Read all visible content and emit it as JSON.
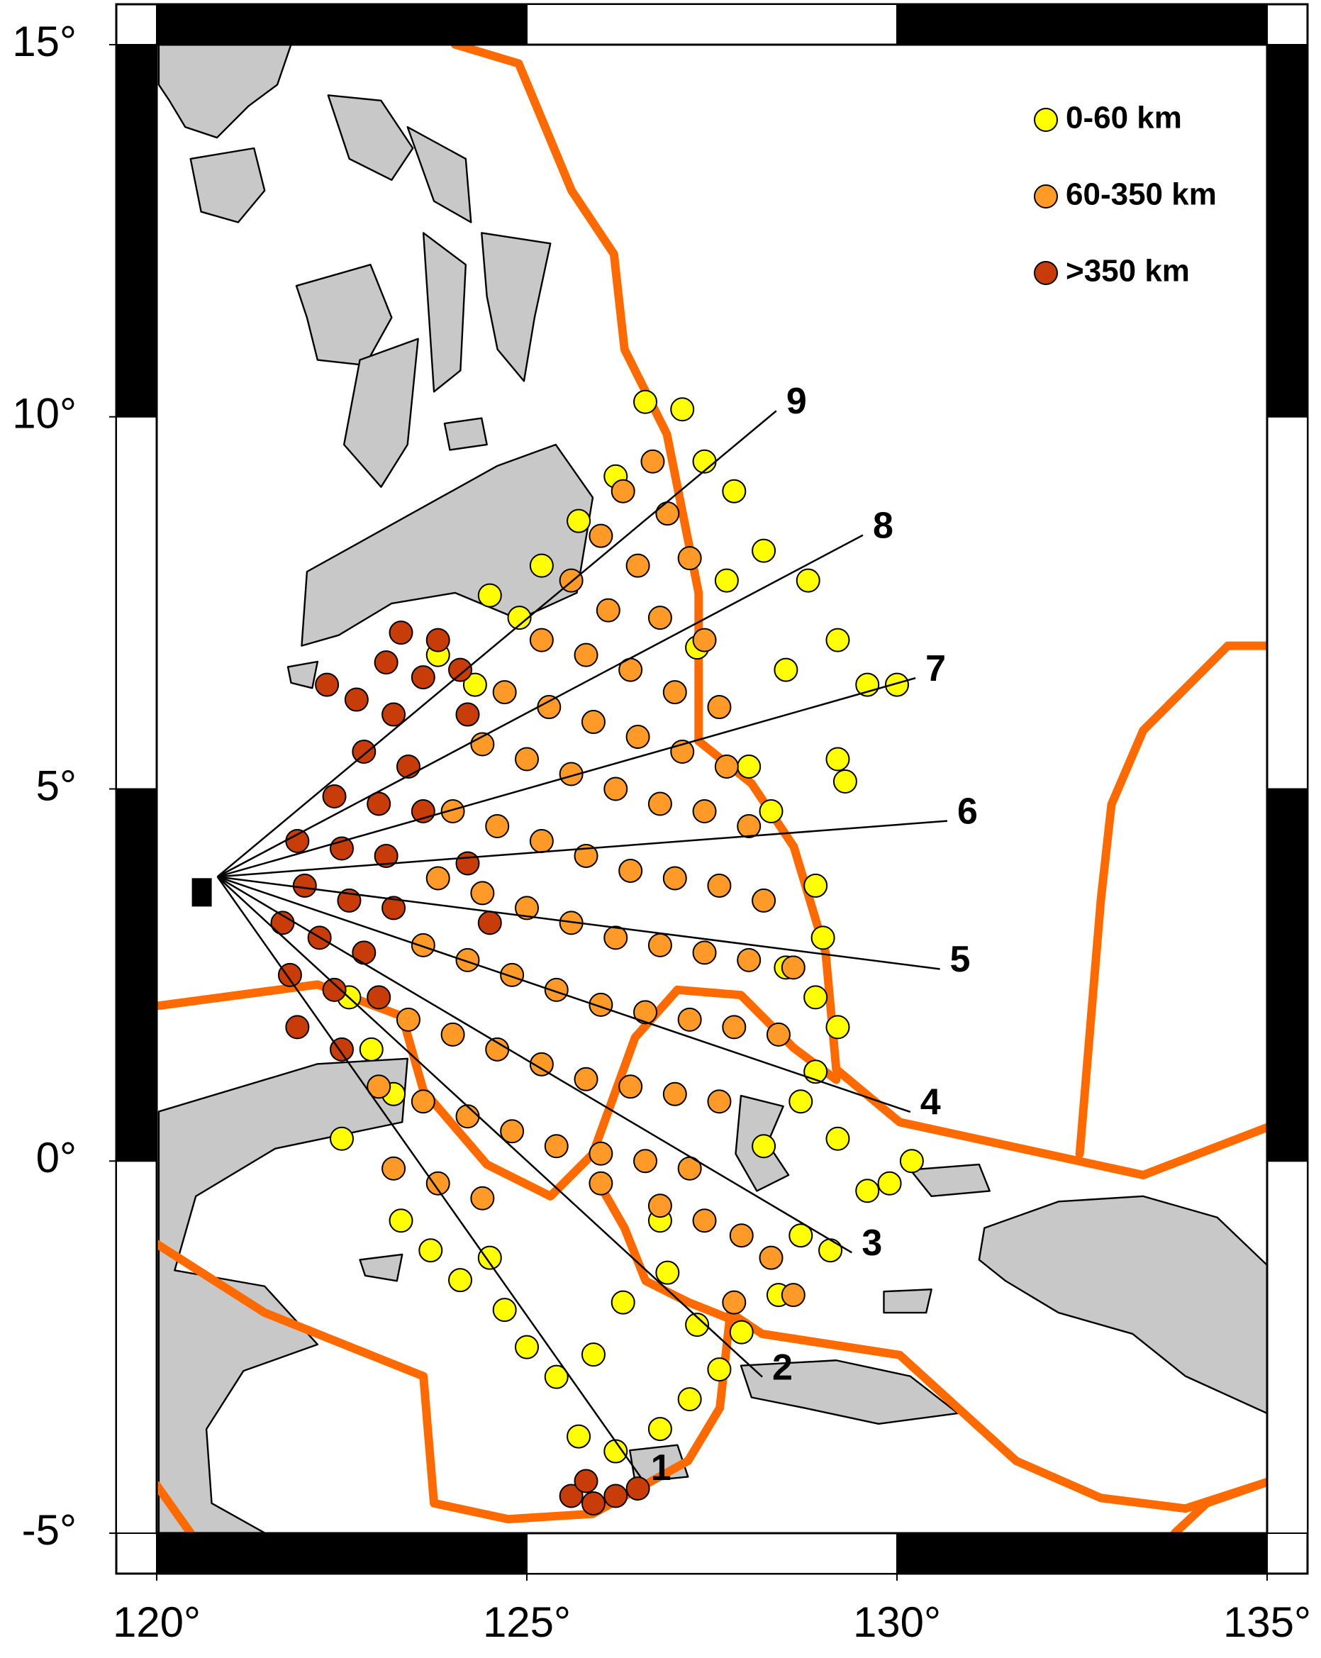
{
  "map": {
    "xlim": [
      120,
      135
    ],
    "ylim": [
      -5,
      15
    ],
    "xticks": [
      {
        "value": 120,
        "label": "120°"
      },
      {
        "value": 125,
        "label": "125°"
      },
      {
        "value": 130,
        "label": "130°"
      },
      {
        "value": 135,
        "label": "135°"
      }
    ],
    "yticks": [
      {
        "value": 15,
        "label": "15°"
      },
      {
        "value": 10,
        "label": "10°"
      },
      {
        "value": 5,
        "label": "5°"
      },
      {
        "value": 0,
        "label": "0°"
      },
      {
        "value": -5,
        "label": "-5°"
      }
    ],
    "earthquakes": [
      {
        "name": "0-60 km",
        "color": "#ffff00",
        "points": [
          [
            126.6,
            10.2
          ],
          [
            127.1,
            10.1
          ],
          [
            127.4,
            9.4
          ],
          [
            127.8,
            9.0
          ],
          [
            128.2,
            8.2
          ],
          [
            128.8,
            7.8
          ],
          [
            129.2,
            7.0
          ],
          [
            128.5,
            6.6
          ],
          [
            129.6,
            6.4
          ],
          [
            130.0,
            6.4
          ],
          [
            129.2,
            5.4
          ],
          [
            129.3,
            5.1
          ],
          [
            128.3,
            4.7
          ],
          [
            128.9,
            3.7
          ],
          [
            129.0,
            3.0
          ],
          [
            128.9,
            2.2
          ],
          [
            128.9,
            1.2
          ],
          [
            129.2,
            1.8
          ],
          [
            128.7,
            0.8
          ],
          [
            129.2,
            0.3
          ],
          [
            130.2,
            0.0
          ],
          [
            129.9,
            -0.3
          ],
          [
            129.6,
            -0.4
          ],
          [
            128.7,
            -1.0
          ],
          [
            129.1,
            -1.2
          ],
          [
            128.4,
            -1.8
          ],
          [
            127.9,
            -2.3
          ],
          [
            127.6,
            -2.8
          ],
          [
            127.2,
            -3.2
          ],
          [
            126.8,
            -3.6
          ],
          [
            126.2,
            -3.9
          ],
          [
            125.7,
            -3.7
          ],
          [
            125.4,
            -2.9
          ],
          [
            125.0,
            -2.5
          ],
          [
            124.7,
            -2.0
          ],
          [
            124.1,
            -1.6
          ],
          [
            123.7,
            -1.2
          ],
          [
            123.3,
            -0.8
          ],
          [
            126.3,
            -1.9
          ],
          [
            126.9,
            -1.5
          ],
          [
            127.3,
            -2.2
          ],
          [
            125.9,
            -2.6
          ],
          [
            122.6,
            2.2
          ],
          [
            122.9,
            1.5
          ],
          [
            123.2,
            0.9
          ],
          [
            124.5,
            7.6
          ],
          [
            125.2,
            8.0
          ],
          [
            125.7,
            8.6
          ],
          [
            126.2,
            9.2
          ],
          [
            124.9,
            7.3
          ],
          [
            123.8,
            6.8
          ],
          [
            124.3,
            6.4
          ],
          [
            127.7,
            7.8
          ],
          [
            127.3,
            6.9
          ],
          [
            128.0,
            5.3
          ],
          [
            126.8,
            -0.8
          ],
          [
            124.5,
            -1.3
          ],
          [
            122.5,
            0.3
          ],
          [
            128.5,
            2.6
          ],
          [
            128.2,
            0.2
          ]
        ]
      },
      {
        "name": "60-350 km",
        "color": "#ff9a28",
        "points": [
          [
            126.7,
            9.4
          ],
          [
            126.3,
            9.0
          ],
          [
            126.9,
            8.7
          ],
          [
            126.0,
            8.4
          ],
          [
            126.5,
            8.0
          ],
          [
            127.2,
            8.1
          ],
          [
            125.6,
            7.8
          ],
          [
            126.1,
            7.4
          ],
          [
            126.8,
            7.3
          ],
          [
            127.4,
            7.0
          ],
          [
            125.2,
            7.0
          ],
          [
            125.8,
            6.8
          ],
          [
            126.4,
            6.6
          ],
          [
            127.0,
            6.3
          ],
          [
            127.6,
            6.1
          ],
          [
            124.7,
            6.3
          ],
          [
            125.3,
            6.1
          ],
          [
            125.9,
            5.9
          ],
          [
            126.5,
            5.7
          ],
          [
            127.1,
            5.5
          ],
          [
            127.7,
            5.3
          ],
          [
            124.4,
            5.6
          ],
          [
            125.0,
            5.4
          ],
          [
            125.6,
            5.2
          ],
          [
            126.2,
            5.0
          ],
          [
            126.8,
            4.8
          ],
          [
            127.4,
            4.7
          ],
          [
            128.0,
            4.5
          ],
          [
            124.0,
            4.7
          ],
          [
            124.6,
            4.5
          ],
          [
            125.2,
            4.3
          ],
          [
            125.8,
            4.1
          ],
          [
            126.4,
            3.9
          ],
          [
            127.0,
            3.8
          ],
          [
            127.6,
            3.7
          ],
          [
            128.2,
            3.5
          ],
          [
            123.8,
            3.8
          ],
          [
            124.4,
            3.6
          ],
          [
            125.0,
            3.4
          ],
          [
            125.6,
            3.2
          ],
          [
            126.2,
            3.0
          ],
          [
            126.8,
            2.9
          ],
          [
            127.4,
            2.8
          ],
          [
            128.0,
            2.7
          ],
          [
            128.6,
            2.6
          ],
          [
            123.6,
            2.9
          ],
          [
            124.2,
            2.7
          ],
          [
            124.8,
            2.5
          ],
          [
            125.4,
            2.3
          ],
          [
            126.0,
            2.1
          ],
          [
            126.6,
            2.0
          ],
          [
            127.2,
            1.9
          ],
          [
            127.8,
            1.8
          ],
          [
            128.4,
            1.7
          ],
          [
            123.4,
            1.9
          ],
          [
            124.0,
            1.7
          ],
          [
            124.6,
            1.5
          ],
          [
            125.2,
            1.3
          ],
          [
            125.8,
            1.1
          ],
          [
            126.4,
            1.0
          ],
          [
            127.0,
            0.9
          ],
          [
            127.6,
            0.8
          ],
          [
            123.0,
            1.0
          ],
          [
            123.6,
            0.8
          ],
          [
            124.2,
            0.6
          ],
          [
            124.8,
            0.4
          ],
          [
            125.4,
            0.2
          ],
          [
            126.0,
            0.1
          ],
          [
            126.6,
            0.0
          ],
          [
            127.2,
            -0.1
          ],
          [
            123.2,
            -0.1
          ],
          [
            123.8,
            -0.3
          ],
          [
            124.4,
            -0.5
          ],
          [
            126.8,
            -0.6
          ],
          [
            127.4,
            -0.8
          ],
          [
            127.9,
            -1.0
          ],
          [
            128.3,
            -1.3
          ],
          [
            128.6,
            -1.8
          ],
          [
            127.8,
            -1.9
          ],
          [
            126.0,
            -0.3
          ]
        ]
      },
      {
        "name": ">350 km",
        "color": "#c83c0a",
        "points": [
          [
            123.3,
            7.1
          ],
          [
            123.8,
            7.0
          ],
          [
            123.1,
            6.7
          ],
          [
            123.6,
            6.5
          ],
          [
            124.1,
            6.6
          ],
          [
            122.7,
            6.2
          ],
          [
            123.2,
            6.0
          ],
          [
            124.2,
            6.0
          ],
          [
            122.8,
            5.5
          ],
          [
            123.4,
            5.3
          ],
          [
            122.4,
            4.9
          ],
          [
            123.0,
            4.8
          ],
          [
            123.6,
            4.7
          ],
          [
            121.9,
            4.3
          ],
          [
            122.5,
            4.2
          ],
          [
            123.1,
            4.1
          ],
          [
            122.0,
            3.7
          ],
          [
            122.6,
            3.5
          ],
          [
            123.2,
            3.4
          ],
          [
            121.7,
            3.2
          ],
          [
            122.2,
            3.0
          ],
          [
            122.8,
            2.8
          ],
          [
            121.8,
            2.5
          ],
          [
            122.4,
            2.3
          ],
          [
            123.0,
            2.2
          ],
          [
            121.9,
            1.8
          ],
          [
            122.5,
            1.5
          ],
          [
            124.2,
            4.0
          ],
          [
            124.5,
            3.2
          ],
          [
            122.3,
            6.4
          ],
          [
            125.6,
            -4.5
          ],
          [
            125.9,
            -4.6
          ],
          [
            126.2,
            -4.5
          ],
          [
            125.8,
            -4.3
          ],
          [
            126.5,
            -4.4
          ]
        ]
      }
    ],
    "profiles": {
      "origin": [
        120.82,
        3.82
      ],
      "lines": [
        {
          "label": "1",
          "end": [
            126.54,
            -4.25
          ]
        },
        {
          "label": "2",
          "end": [
            128.18,
            -2.9
          ]
        },
        {
          "label": "3",
          "end": [
            129.39,
            -1.23
          ]
        },
        {
          "label": "4",
          "end": [
            130.18,
            0.66
          ]
        },
        {
          "label": "5",
          "end": [
            130.58,
            2.58
          ]
        },
        {
          "label": "6",
          "end": [
            130.68,
            4.57
          ]
        },
        {
          "label": "7",
          "end": [
            130.25,
            6.49
          ]
        },
        {
          "label": "8",
          "end": [
            129.54,
            8.41
          ]
        },
        {
          "label": "9",
          "end": [
            128.37,
            10.08
          ]
        }
      ]
    }
  }
}
